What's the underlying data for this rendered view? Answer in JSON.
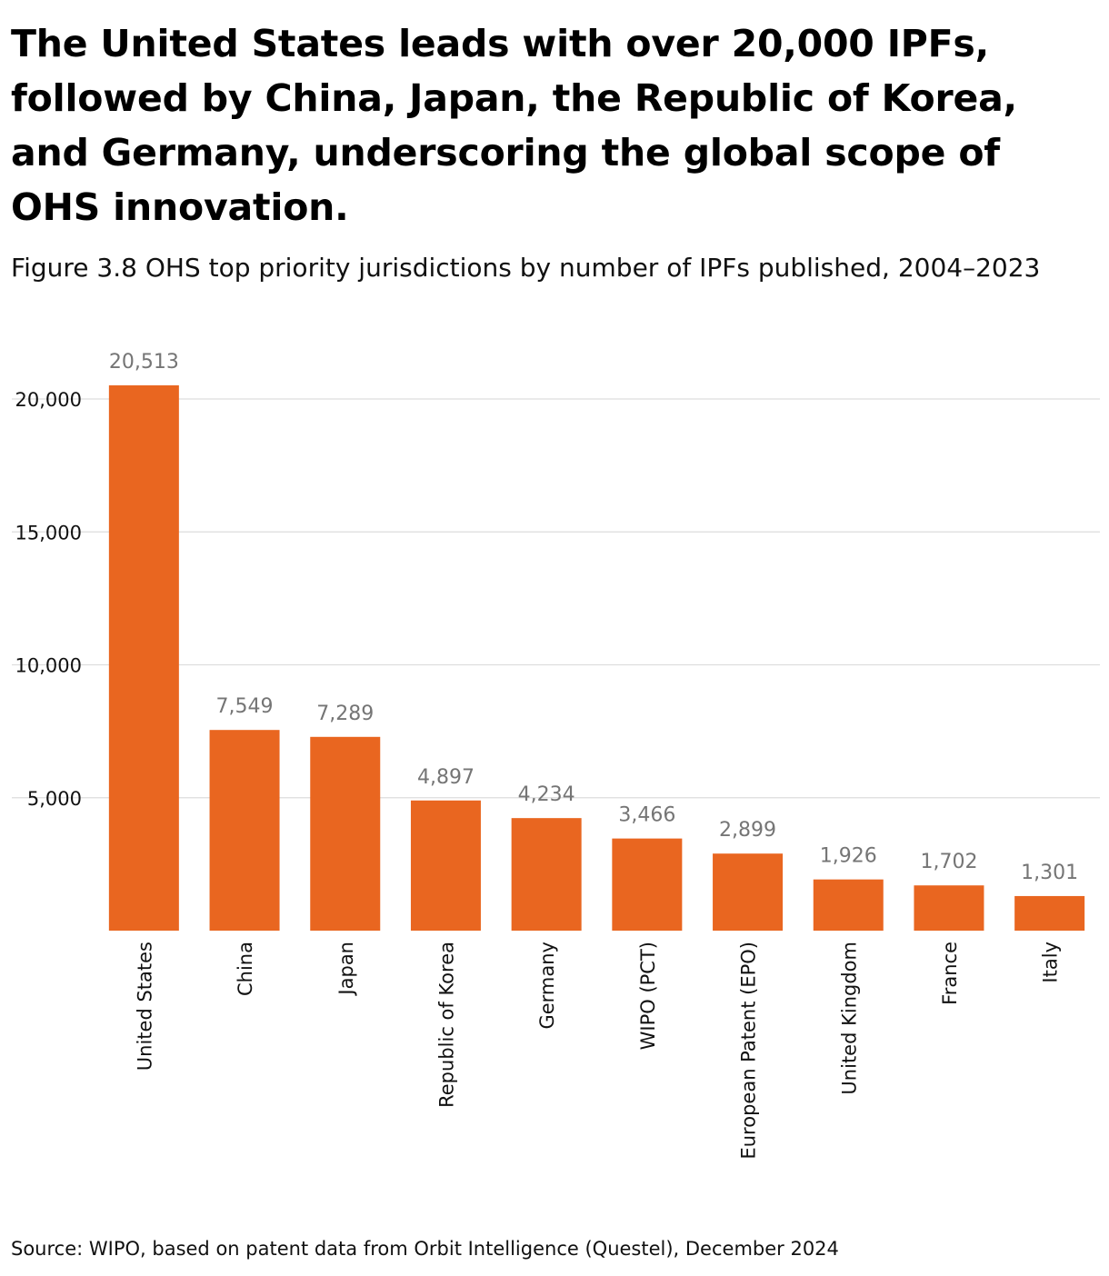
{
  "headline": "The United States leads with over 20,000 IPFs, followed by China, Japan, the Republic of Korea, and Germany, underscoring the global scope of OHS innovation.",
  "subtitle": "Figure 3.8 OHS top priority jurisdictions by number of IPFs published, 2004–2023",
  "source": "Source: WIPO, based on patent data from Orbit Intelligence (Questel), December 2024",
  "colors": {
    "bar": "#E96620",
    "grid": "#dddddd",
    "data_label": "#757575"
  },
  "chart_data": {
    "type": "bar",
    "title": "OHS top priority jurisdictions by number of IPFs published, 2004–2023",
    "xlabel": "",
    "ylabel": "",
    "ylim": [
      0,
      21000
    ],
    "yticks": [
      5000,
      10000,
      15000,
      20000
    ],
    "ytick_labels": [
      "5,000",
      "10,000",
      "15,000",
      "20,000"
    ],
    "grid": true,
    "categories": [
      "United States",
      "China",
      "Japan",
      "Republic of Korea",
      "Germany",
      "WIPO (PCT)",
      "European Patent (EPO)",
      "United Kingdom",
      "France",
      "Italy"
    ],
    "values": [
      20513,
      7549,
      7289,
      4897,
      4234,
      3466,
      2899,
      1926,
      1702,
      1301
    ],
    "value_labels": [
      "20,513",
      "7,549",
      "7,289",
      "4,897",
      "4,234",
      "3,466",
      "2,899",
      "1,926",
      "1,702",
      "1,301"
    ]
  }
}
